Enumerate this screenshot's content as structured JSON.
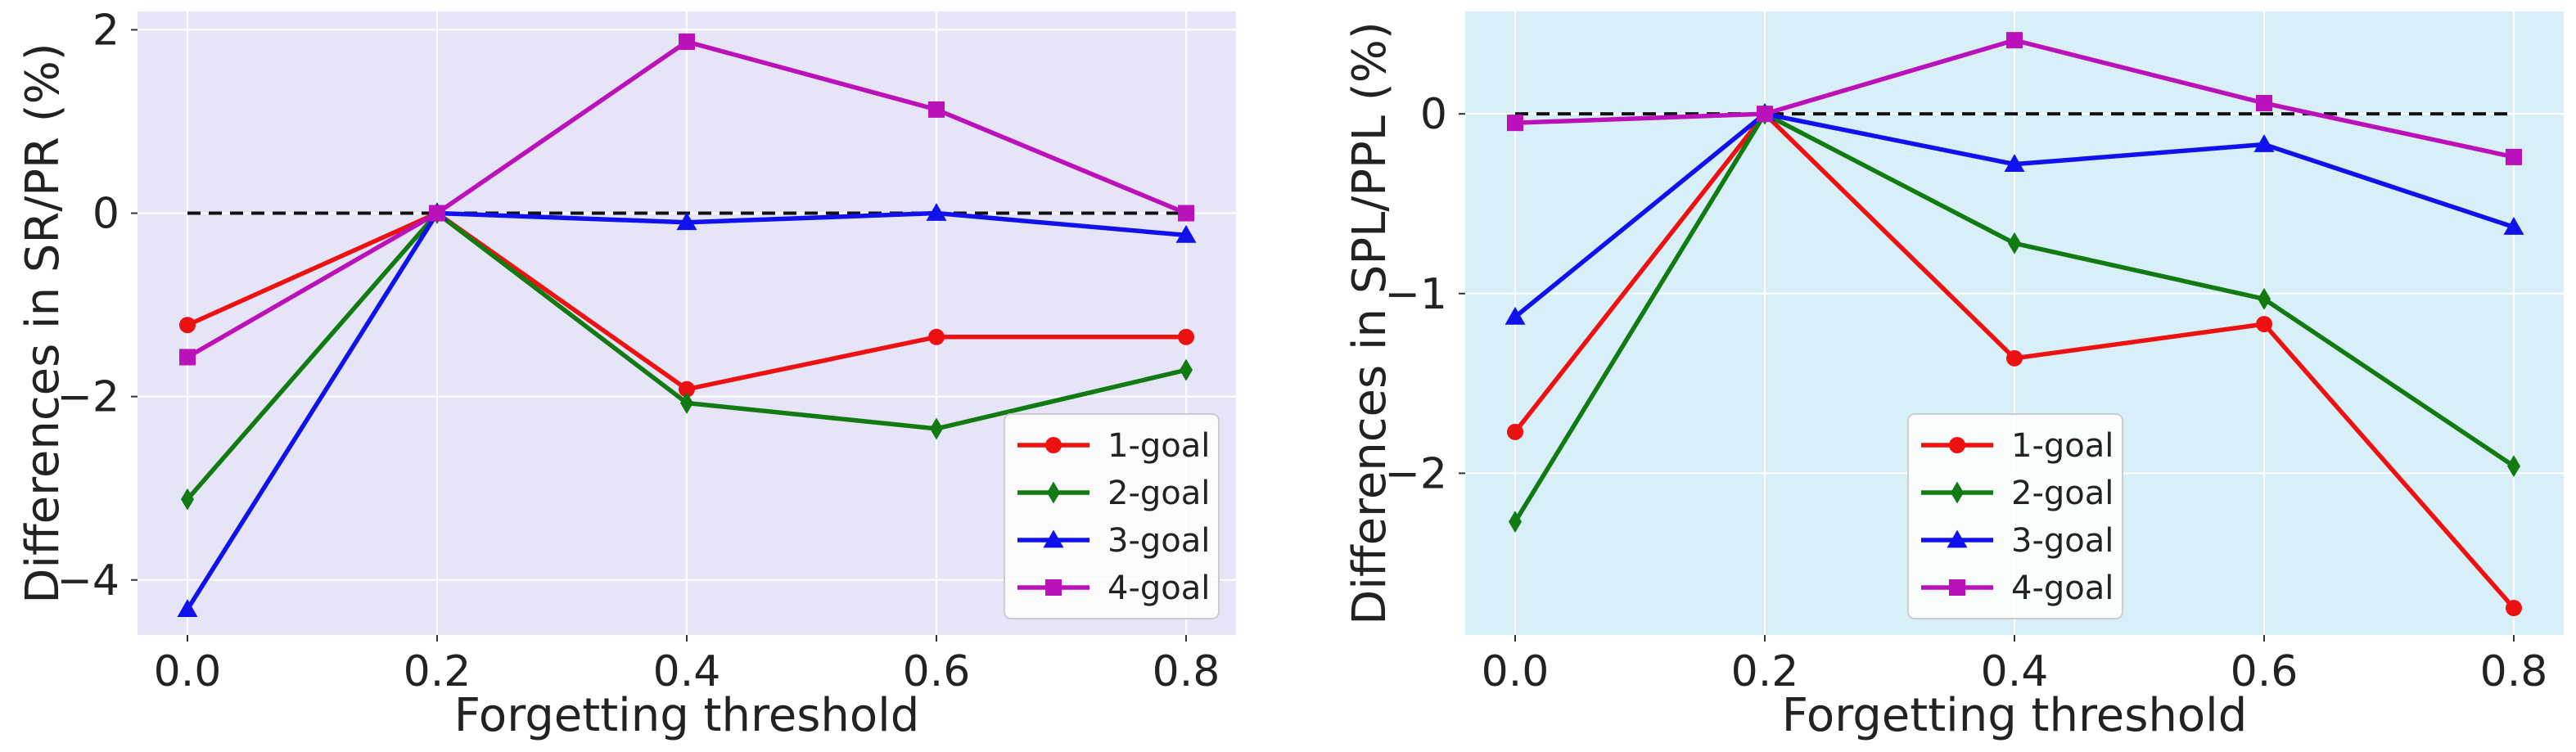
{
  "chart_data": [
    {
      "type": "line",
      "title": "",
      "xlabel": "Forgetting threshold",
      "ylabel": "Differences in SR/PR (%)",
      "background": "#e5e5f7",
      "x": [
        0.0,
        0.2,
        0.4,
        0.6,
        0.8
      ],
      "xtick_labels": [
        "0.0",
        "0.2",
        "0.4",
        "0.6",
        "0.8"
      ],
      "yticks": [
        -4,
        -2,
        0,
        2
      ],
      "ytick_labels": [
        "−4",
        "−2",
        "0",
        "2"
      ],
      "xlim": [
        -0.04,
        0.84
      ],
      "ylim": [
        -4.6,
        2.2
      ],
      "grid": true,
      "baseline": 0,
      "legend_position": "bottom-right",
      "series": [
        {
          "name": "1-goal",
          "color": "#ee1111",
          "marker": "circle",
          "values": [
            -1.22,
            0,
            -1.92,
            -1.35,
            -1.35
          ]
        },
        {
          "name": "2-goal",
          "color": "#117a11",
          "marker": "diamond",
          "values": [
            -3.12,
            0,
            -2.07,
            -2.35,
            -1.71
          ]
        },
        {
          "name": "3-goal",
          "color": "#1111ee",
          "marker": "triangle",
          "values": [
            -4.32,
            0,
            -0.1,
            0,
            -0.24
          ]
        },
        {
          "name": "4-goal",
          "color": "#bb11bb",
          "marker": "square",
          "values": [
            -1.57,
            0,
            1.87,
            1.13,
            0
          ]
        }
      ]
    },
    {
      "type": "line",
      "title": "",
      "xlabel": "Forgetting threshold",
      "ylabel": "Differences in SPL/PPL (%)",
      "background": "#d9eff7",
      "x": [
        0.0,
        0.2,
        0.4,
        0.6,
        0.8
      ],
      "xtick_labels": [
        "0.0",
        "0.2",
        "0.4",
        "0.6",
        "0.8"
      ],
      "yticks": [
        -2,
        -1,
        0
      ],
      "ytick_labels": [
        "−2",
        "−1",
        "0"
      ],
      "xlim": [
        -0.04,
        0.84
      ],
      "ylim": [
        -2.9,
        0.57
      ],
      "grid": true,
      "baseline": 0,
      "legend_position": "bottom-center",
      "series": [
        {
          "name": "1-goal",
          "color": "#ee1111",
          "marker": "circle",
          "values": [
            -1.77,
            0,
            -1.36,
            -1.17,
            -2.75
          ]
        },
        {
          "name": "2-goal",
          "color": "#117a11",
          "marker": "diamond",
          "values": [
            -2.27,
            0,
            -0.72,
            -1.03,
            -1.96
          ]
        },
        {
          "name": "3-goal",
          "color": "#1111ee",
          "marker": "triangle",
          "values": [
            -1.13,
            0,
            -0.28,
            -0.17,
            -0.63
          ]
        },
        {
          "name": "4-goal",
          "color": "#bb11bb",
          "marker": "square",
          "values": [
            -0.05,
            0,
            0.41,
            0.06,
            -0.24
          ]
        }
      ]
    }
  ]
}
